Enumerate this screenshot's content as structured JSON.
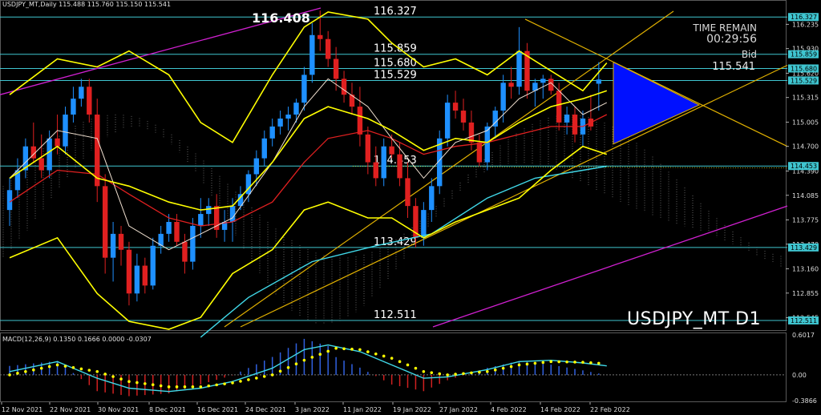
{
  "header": {
    "symbol_line": "USDJPY_MT,Daily  115.488 115.760 115.150 115.541"
  },
  "macd_label": "MACD(12,26,9) 0.1350 0.1666 0.0000 -0.0307",
  "timer": {
    "title": "TIME REMAIN",
    "value": "00:29:56",
    "bid_label": "Bid",
    "bid_value": "115.541"
  },
  "watermark": "USDJPY_MT D1",
  "colors": {
    "up": "#1e90ff",
    "down": "#e02020",
    "bb": "#ffff00",
    "level": "#3fc5d0",
    "channel": "#d020d0",
    "grid": "#7a7a7a"
  },
  "chart_data": {
    "type": "candlestick",
    "symbol": "USDJPY_MT",
    "timeframe": "Daily",
    "ylim": [
      112.43,
      116.4
    ],
    "price_ticks": [
      "116.235",
      "115.930",
      "115.620",
      "115.315",
      "115.005",
      "114.700",
      "114.390",
      "114.085",
      "113.775",
      "113.470",
      "113.160",
      "112.855",
      "112.545"
    ],
    "x_labels": [
      "12 Nov 2021",
      "22 Nov 2021",
      "30 Nov 2021",
      "8 Dec 2021",
      "16 Dec 2021",
      "24 Dec 2021",
      "3 Jan 2022",
      "11 Jan 2022",
      "19 Jan 2022",
      "27 Jan 2022",
      "4 Feb 2022",
      "14 Feb 2022",
      "22 Feb 2022"
    ],
    "levels": [
      {
        "value": "116.327",
        "price": 116.327
      },
      {
        "value": "115.859",
        "price": 115.859
      },
      {
        "value": "115.680",
        "price": 115.68
      },
      {
        "value": "115.529",
        "price": 115.529
      },
      {
        "value": "114.453",
        "price": 114.453
      },
      {
        "value": "113.429",
        "price": 113.429
      },
      {
        "value": "112.511",
        "price": 112.511
      }
    ],
    "high_label": "116.408",
    "candles": [
      {
        "o": 113.9,
        "h": 114.3,
        "l": 113.7,
        "c": 114.15
      },
      {
        "o": 114.15,
        "h": 114.55,
        "l": 114.05,
        "c": 114.4
      },
      {
        "o": 114.4,
        "h": 114.8,
        "l": 114.3,
        "c": 114.7
      },
      {
        "o": 114.7,
        "h": 115.0,
        "l": 114.5,
        "c": 114.55
      },
      {
        "o": 114.55,
        "h": 114.85,
        "l": 114.3,
        "c": 114.4
      },
      {
        "o": 114.4,
        "h": 114.9,
        "l": 114.3,
        "c": 114.8
      },
      {
        "o": 114.8,
        "h": 115.1,
        "l": 114.6,
        "c": 114.7
      },
      {
        "o": 114.7,
        "h": 115.2,
        "l": 114.6,
        "c": 115.1
      },
      {
        "o": 115.1,
        "h": 115.45,
        "l": 115.0,
        "c": 115.3
      },
      {
        "o": 115.3,
        "h": 115.55,
        "l": 115.2,
        "c": 115.45
      },
      {
        "o": 115.45,
        "h": 115.55,
        "l": 115.0,
        "c": 115.1
      },
      {
        "o": 115.1,
        "h": 115.3,
        "l": 114.0,
        "c": 114.2
      },
      {
        "o": 114.2,
        "h": 114.35,
        "l": 113.1,
        "c": 113.3
      },
      {
        "o": 113.3,
        "h": 113.75,
        "l": 113.0,
        "c": 113.6
      },
      {
        "o": 113.6,
        "h": 113.7,
        "l": 113.2,
        "c": 113.4
      },
      {
        "o": 113.4,
        "h": 113.5,
        "l": 112.7,
        "c": 112.85
      },
      {
        "o": 112.85,
        "h": 113.35,
        "l": 112.75,
        "c": 113.2
      },
      {
        "o": 113.2,
        "h": 113.3,
        "l": 112.85,
        "c": 112.95
      },
      {
        "o": 112.95,
        "h": 113.55,
        "l": 112.9,
        "c": 113.45
      },
      {
        "o": 113.45,
        "h": 113.7,
        "l": 113.35,
        "c": 113.6
      },
      {
        "o": 113.6,
        "h": 113.85,
        "l": 113.5,
        "c": 113.75
      },
      {
        "o": 113.75,
        "h": 113.85,
        "l": 113.45,
        "c": 113.5
      },
      {
        "o": 113.5,
        "h": 113.6,
        "l": 113.1,
        "c": 113.25
      },
      {
        "o": 113.25,
        "h": 113.8,
        "l": 113.15,
        "c": 113.7
      },
      {
        "o": 113.7,
        "h": 114.05,
        "l": 113.55,
        "c": 113.85
      },
      {
        "o": 113.85,
        "h": 114.05,
        "l": 113.7,
        "c": 113.95
      },
      {
        "o": 113.95,
        "h": 114.1,
        "l": 113.55,
        "c": 113.65
      },
      {
        "o": 113.65,
        "h": 113.9,
        "l": 113.5,
        "c": 113.75
      },
      {
        "o": 113.75,
        "h": 114.05,
        "l": 113.5,
        "c": 113.95
      },
      {
        "o": 113.95,
        "h": 114.2,
        "l": 113.9,
        "c": 114.1
      },
      {
        "o": 114.1,
        "h": 114.4,
        "l": 114.0,
        "c": 114.35
      },
      {
        "o": 114.35,
        "h": 114.65,
        "l": 114.2,
        "c": 114.55
      },
      {
        "o": 114.55,
        "h": 114.9,
        "l": 114.45,
        "c": 114.8
      },
      {
        "o": 114.8,
        "h": 115.05,
        "l": 114.7,
        "c": 114.95
      },
      {
        "o": 114.95,
        "h": 115.15,
        "l": 114.85,
        "c": 115.05
      },
      {
        "o": 115.05,
        "h": 115.2,
        "l": 114.9,
        "c": 115.1
      },
      {
        "o": 115.1,
        "h": 115.3,
        "l": 115.0,
        "c": 115.25
      },
      {
        "o": 115.25,
        "h": 115.7,
        "l": 115.15,
        "c": 115.6
      },
      {
        "o": 115.6,
        "h": 116.25,
        "l": 115.5,
        "c": 116.1
      },
      {
        "o": 116.1,
        "h": 116.408,
        "l": 115.9,
        "c": 116.05
      },
      {
        "o": 116.05,
        "h": 116.15,
        "l": 115.7,
        "c": 115.8
      },
      {
        "o": 115.8,
        "h": 115.95,
        "l": 115.4,
        "c": 115.55
      },
      {
        "o": 115.55,
        "h": 115.65,
        "l": 115.25,
        "c": 115.35
      },
      {
        "o": 115.35,
        "h": 115.5,
        "l": 115.1,
        "c": 115.2
      },
      {
        "o": 115.2,
        "h": 115.45,
        "l": 114.7,
        "c": 114.85
      },
      {
        "o": 114.85,
        "h": 114.95,
        "l": 114.35,
        "c": 114.5
      },
      {
        "o": 114.5,
        "h": 114.7,
        "l": 114.2,
        "c": 114.3
      },
      {
        "o": 114.3,
        "h": 114.8,
        "l": 114.2,
        "c": 114.7
      },
      {
        "o": 114.7,
        "h": 114.85,
        "l": 114.55,
        "c": 114.6
      },
      {
        "o": 114.6,
        "h": 114.75,
        "l": 114.2,
        "c": 114.3
      },
      {
        "o": 114.3,
        "h": 114.5,
        "l": 113.8,
        "c": 113.95
      },
      {
        "o": 113.95,
        "h": 114.05,
        "l": 113.429,
        "c": 113.55
      },
      {
        "o": 113.55,
        "h": 114.0,
        "l": 113.45,
        "c": 113.9
      },
      {
        "o": 113.9,
        "h": 114.3,
        "l": 113.75,
        "c": 114.2
      },
      {
        "o": 114.2,
        "h": 114.9,
        "l": 114.1,
        "c": 114.8
      },
      {
        "o": 114.8,
        "h": 115.35,
        "l": 114.7,
        "c": 115.25
      },
      {
        "o": 115.25,
        "h": 115.4,
        "l": 115.05,
        "c": 115.15
      },
      {
        "o": 115.15,
        "h": 115.3,
        "l": 114.9,
        "c": 115.0
      },
      {
        "o": 115.0,
        "h": 115.15,
        "l": 114.65,
        "c": 114.75
      },
      {
        "o": 114.75,
        "h": 114.85,
        "l": 114.45,
        "c": 114.5
      },
      {
        "o": 114.5,
        "h": 115.0,
        "l": 114.4,
        "c": 114.95
      },
      {
        "o": 114.95,
        "h": 115.2,
        "l": 114.8,
        "c": 115.15
      },
      {
        "o": 115.15,
        "h": 115.6,
        "l": 115.0,
        "c": 115.5
      },
      {
        "o": 115.5,
        "h": 115.7,
        "l": 115.3,
        "c": 115.45
      },
      {
        "o": 115.45,
        "h": 116.2,
        "l": 115.35,
        "c": 115.9
      },
      {
        "o": 115.9,
        "h": 116.0,
        "l": 115.3,
        "c": 115.4
      },
      {
        "o": 115.4,
        "h": 115.55,
        "l": 115.2,
        "c": 115.5
      },
      {
        "o": 115.5,
        "h": 115.6,
        "l": 115.3,
        "c": 115.55
      },
      {
        "o": 115.55,
        "h": 115.6,
        "l": 115.35,
        "c": 115.4
      },
      {
        "o": 115.4,
        "h": 115.5,
        "l": 114.9,
        "c": 115.0
      },
      {
        "o": 115.0,
        "h": 115.2,
        "l": 114.85,
        "c": 115.1
      },
      {
        "o": 115.1,
        "h": 115.2,
        "l": 114.75,
        "c": 114.85
      },
      {
        "o": 114.85,
        "h": 115.15,
        "l": 114.7,
        "c": 115.05
      },
      {
        "o": 115.05,
        "h": 115.35,
        "l": 114.9,
        "c": 114.95
      },
      {
        "o": 115.488,
        "h": 115.76,
        "l": 115.15,
        "c": 115.541
      }
    ],
    "bb_upper": [
      [
        0,
        115.35
      ],
      [
        6,
        115.8
      ],
      [
        11,
        115.7
      ],
      [
        15,
        115.9
      ],
      [
        20,
        115.6
      ],
      [
        24,
        115.0
      ],
      [
        28,
        114.75
      ],
      [
        33,
        115.6
      ],
      [
        37,
        116.2
      ],
      [
        40,
        116.39
      ],
      [
        45,
        116.3
      ],
      [
        48,
        116.0
      ],
      [
        52,
        115.7
      ],
      [
        56,
        115.8
      ],
      [
        60,
        115.6
      ],
      [
        64,
        115.9
      ],
      [
        68,
        115.65
      ],
      [
        72,
        115.4
      ],
      [
        75,
        115.75
      ]
    ],
    "bb_mid": [
      [
        0,
        114.3
      ],
      [
        6,
        114.7
      ],
      [
        11,
        114.3
      ],
      [
        15,
        114.2
      ],
      [
        20,
        114.0
      ],
      [
        24,
        113.9
      ],
      [
        28,
        113.95
      ],
      [
        33,
        114.5
      ],
      [
        37,
        115.05
      ],
      [
        40,
        115.2
      ],
      [
        45,
        115.05
      ],
      [
        48,
        114.9
      ],
      [
        52,
        114.65
      ],
      [
        56,
        114.8
      ],
      [
        60,
        114.75
      ],
      [
        64,
        115.0
      ],
      [
        68,
        115.2
      ],
      [
        72,
        115.3
      ],
      [
        75,
        115.4
      ]
    ],
    "bb_lower": [
      [
        0,
        113.3
      ],
      [
        6,
        113.55
      ],
      [
        11,
        112.85
      ],
      [
        15,
        112.5
      ],
      [
        20,
        112.4
      ],
      [
        24,
        112.55
      ],
      [
        28,
        113.1
      ],
      [
        33,
        113.4
      ],
      [
        37,
        113.9
      ],
      [
        40,
        114.0
      ],
      [
        45,
        113.8
      ],
      [
        48,
        113.8
      ],
      [
        52,
        113.55
      ],
      [
        56,
        113.75
      ],
      [
        60,
        113.9
      ],
      [
        64,
        114.05
      ],
      [
        68,
        114.4
      ],
      [
        72,
        114.7
      ],
      [
        75,
        114.6
      ]
    ],
    "ma_white": [
      [
        0,
        114.3
      ],
      [
        6,
        114.9
      ],
      [
        11,
        114.8
      ],
      [
        15,
        113.7
      ],
      [
        20,
        113.4
      ],
      [
        24,
        113.6
      ],
      [
        28,
        113.8
      ],
      [
        33,
        114.5
      ],
      [
        37,
        115.2
      ],
      [
        40,
        115.55
      ],
      [
        45,
        115.2
      ],
      [
        48,
        114.8
      ],
      [
        52,
        114.3
      ],
      [
        56,
        114.75
      ],
      [
        60,
        114.9
      ],
      [
        64,
        115.3
      ],
      [
        68,
        115.5
      ],
      [
        72,
        115.1
      ],
      [
        75,
        115.25
      ]
    ],
    "ma_red": [
      [
        0,
        114.0
      ],
      [
        6,
        114.4
      ],
      [
        11,
        114.35
      ],
      [
        15,
        114.1
      ],
      [
        20,
        113.8
      ],
      [
        24,
        113.7
      ],
      [
        28,
        113.75
      ],
      [
        33,
        114.0
      ],
      [
        37,
        114.5
      ],
      [
        40,
        114.8
      ],
      [
        45,
        114.9
      ],
      [
        48,
        114.8
      ],
      [
        52,
        114.6
      ],
      [
        56,
        114.7
      ],
      [
        60,
        114.75
      ],
      [
        64,
        114.85
      ],
      [
        68,
        114.95
      ],
      [
        72,
        114.95
      ],
      [
        75,
        115.1
      ]
    ],
    "ma_cyan": [
      [
        24,
        112.3
      ],
      [
        30,
        112.8
      ],
      [
        38,
        113.25
      ],
      [
        46,
        113.45
      ],
      [
        53,
        113.6
      ],
      [
        60,
        114.05
      ],
      [
        66,
        114.3
      ],
      [
        72,
        114.4
      ],
      [
        75,
        114.45
      ]
    ],
    "macd": {
      "ylim": [
        -0.3866,
        0.6017
      ],
      "ticks": [
        "0.6017",
        "0.00",
        "-0.3866"
      ],
      "signal_label": "0.1666",
      "line": [
        [
          0,
          0.05
        ],
        [
          6,
          0.2
        ],
        [
          11,
          -0.05
        ],
        [
          15,
          -0.2
        ],
        [
          20,
          -0.25
        ],
        [
          24,
          -0.2
        ],
        [
          28,
          -0.1
        ],
        [
          33,
          0.1
        ],
        [
          37,
          0.38
        ],
        [
          40,
          0.45
        ],
        [
          44,
          0.35
        ],
        [
          48,
          0.15
        ],
        [
          52,
          -0.05
        ],
        [
          55,
          -0.03
        ],
        [
          60,
          0.08
        ],
        [
          64,
          0.2
        ],
        [
          68,
          0.22
        ],
        [
          72,
          0.18
        ],
        [
          75,
          0.135
        ]
      ],
      "signal": [
        [
          0,
          0.0
        ],
        [
          6,
          0.15
        ],
        [
          11,
          0.05
        ],
        [
          15,
          -0.1
        ],
        [
          20,
          -0.18
        ],
        [
          24,
          -0.18
        ],
        [
          28,
          -0.12
        ],
        [
          33,
          0.0
        ],
        [
          37,
          0.22
        ],
        [
          41,
          0.4
        ],
        [
          44,
          0.38
        ],
        [
          48,
          0.25
        ],
        [
          52,
          0.05
        ],
        [
          55,
          0.0
        ],
        [
          60,
          0.05
        ],
        [
          64,
          0.15
        ],
        [
          68,
          0.2
        ],
        [
          72,
          0.19
        ],
        [
          75,
          0.167
        ]
      ]
    }
  }
}
